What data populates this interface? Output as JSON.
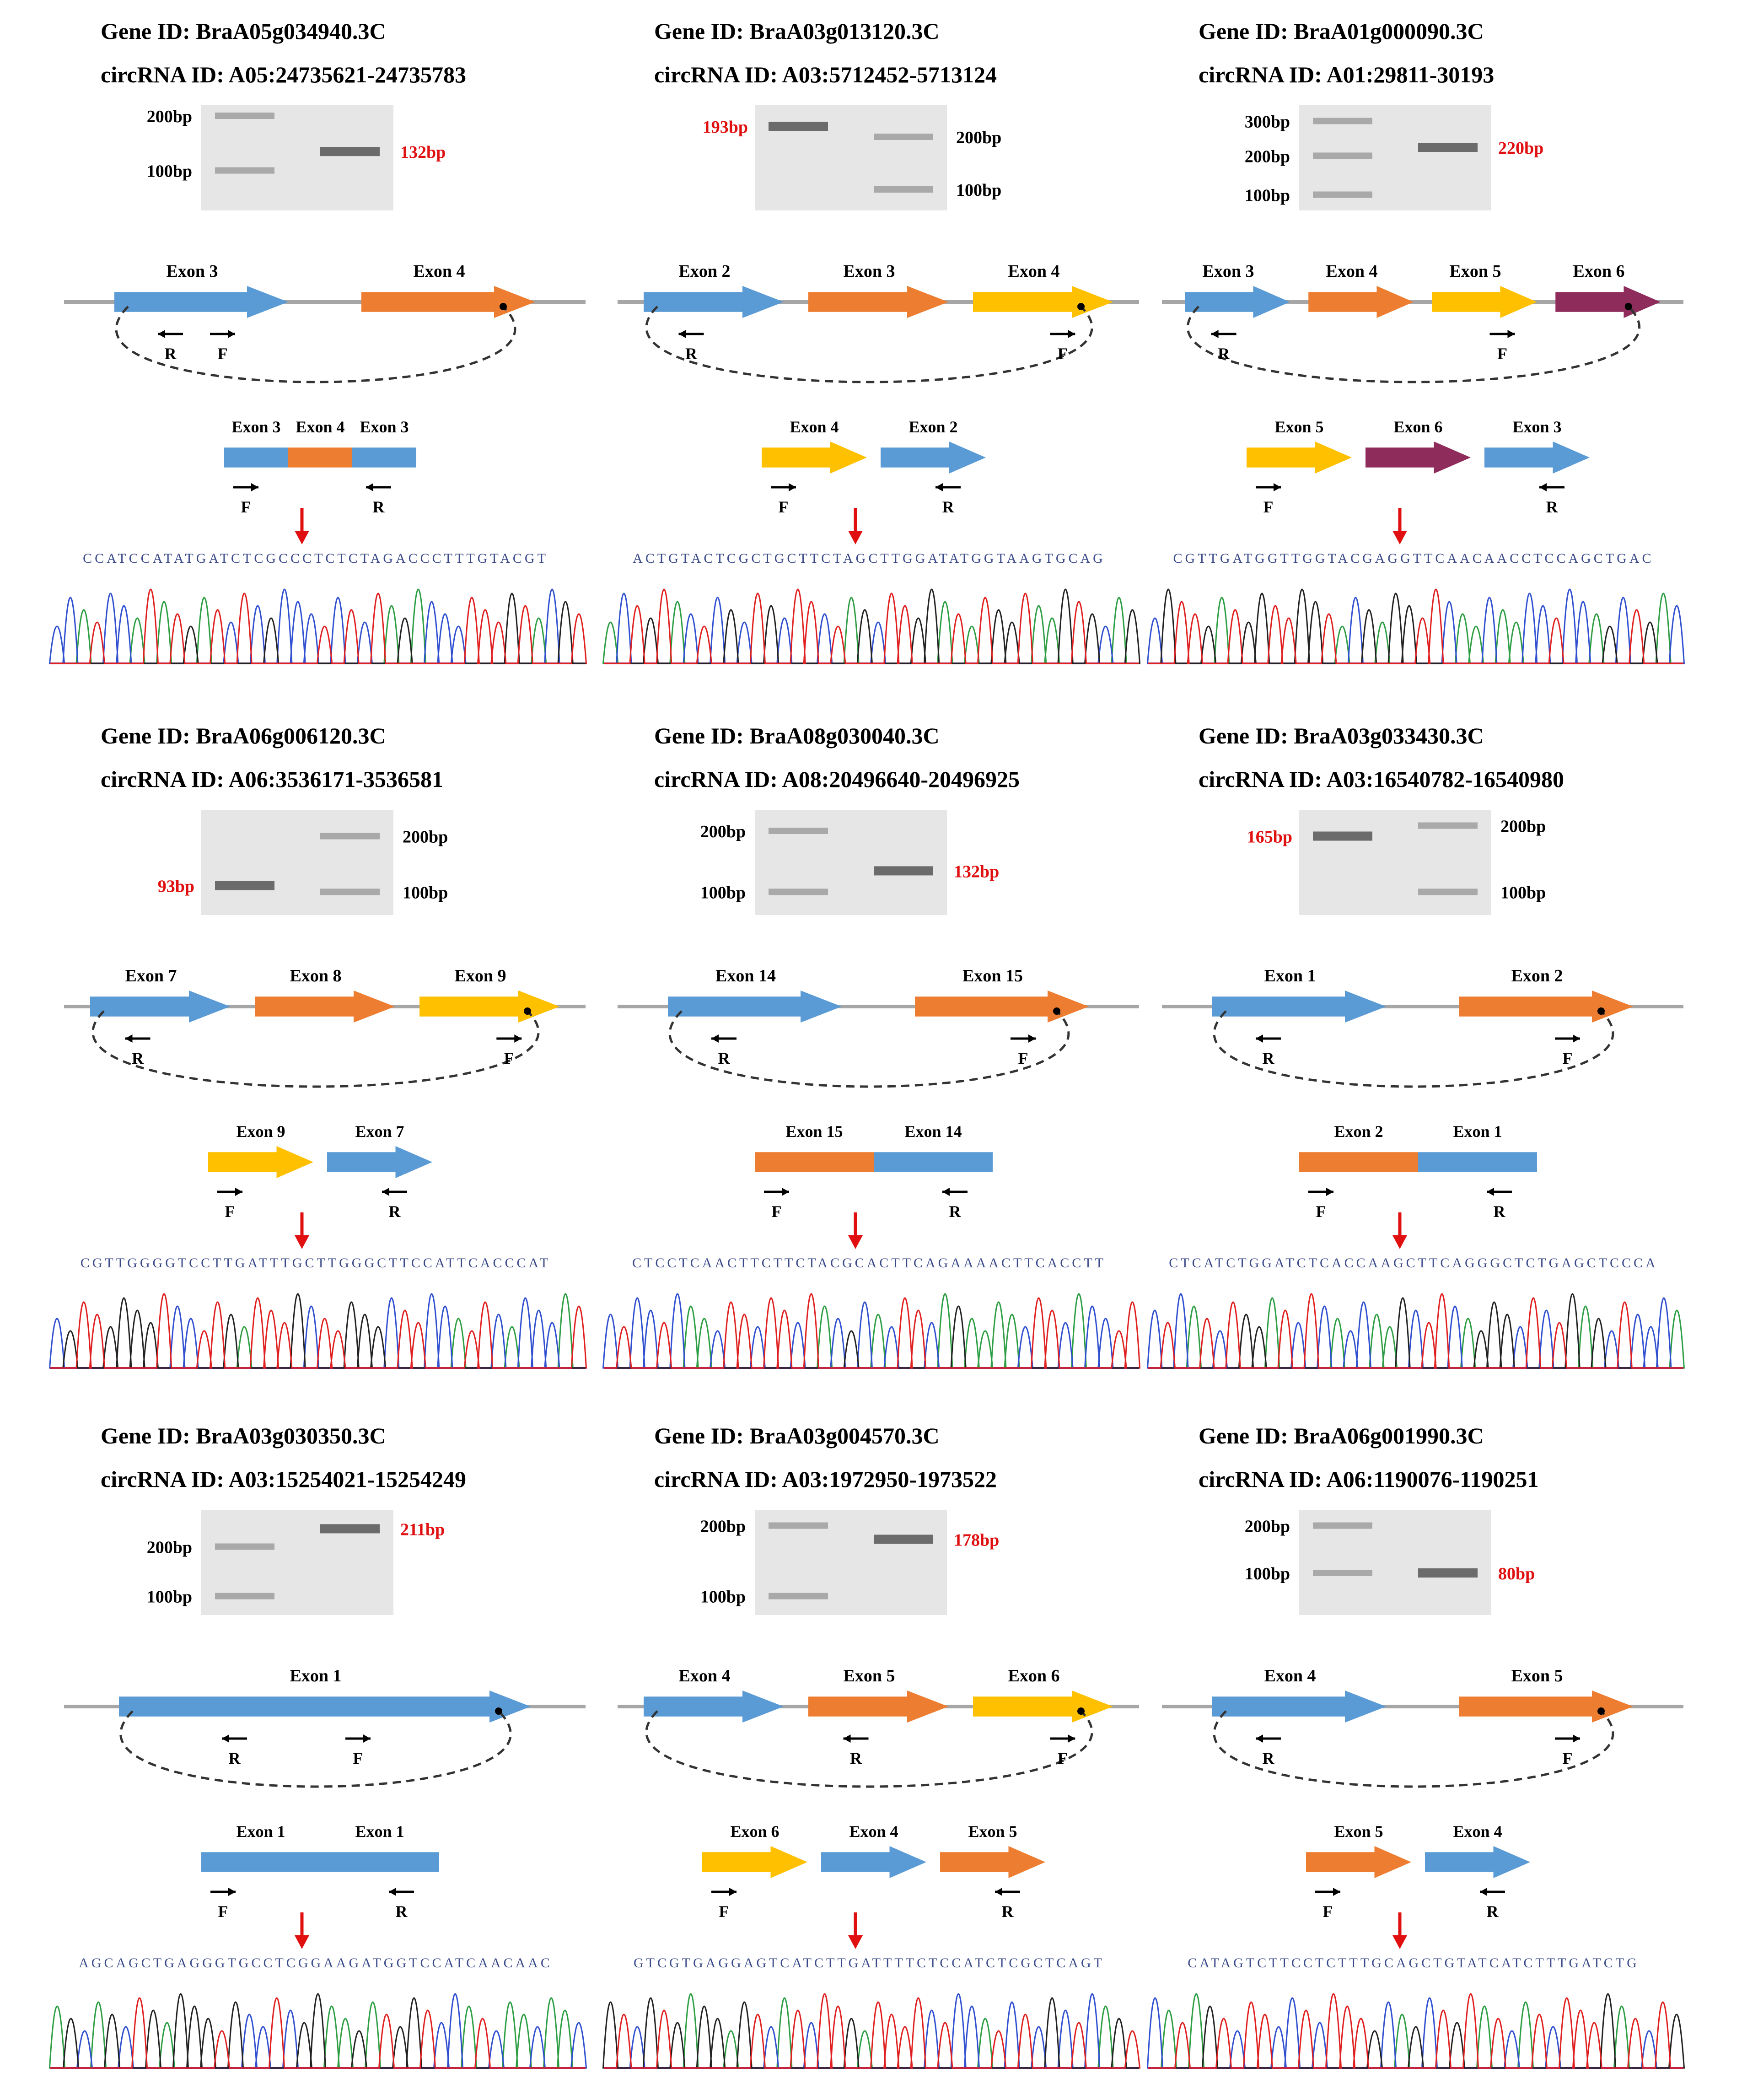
{
  "figure": {
    "colors": {
      "blue": "#5b9bd5",
      "orange": "#ed7d31",
      "yellow": "#ffc000",
      "purple": "#8e2c5c",
      "line": "#a6a6a6",
      "red": "#e01010",
      "gel": "#e6e6e6",
      "trace_a": "#2e9e44",
      "trace_c": "#3050d0",
      "trace_g": "#222222",
      "trace_t": "#e02020"
    },
    "panels": [
      {
        "gene_label": "Gene ID: BraA05g034940.3C",
        "circ_label": "circRNA ID: A05:24735621-24735783",
        "gel": {
          "markers": [
            {
              "text": "200bp",
              "pos": 0.1
            },
            {
              "text": "100bp",
              "pos": 0.62
            }
          ],
          "product": {
            "text": "132bp",
            "pos": 0.44
          },
          "marker_side": "left",
          "product_side": "right"
        },
        "exons": [
          {
            "label": "Exon 3",
            "color": "blue"
          },
          {
            "label": "Exon 4",
            "color": "orange"
          }
        ],
        "primers": [
          {
            "label": "R",
            "exon": 0,
            "dir": "left"
          },
          {
            "label": "F",
            "exon": 0,
            "dir": "right"
          }
        ],
        "junction": [
          {
            "label": "Exon 3",
            "color": "blue"
          },
          {
            "label": "Exon 4",
            "color": "orange"
          },
          {
            "label": "Exon 3",
            "color": "blue"
          }
        ],
        "junction_style": "bar",
        "sequence": "CCATCCATATGATCTCGCCCTCTCTAGACCCTTTGTACGT"
      },
      {
        "gene_label": "Gene ID: BraA03g013120.3C",
        "circ_label": "circRNA ID: A03:5712452-5713124",
        "gel": {
          "markers": [
            {
              "text": "200bp",
              "pos": 0.3
            },
            {
              "text": "100bp",
              "pos": 0.8
            }
          ],
          "product": {
            "text": "193bp",
            "pos": 0.2
          },
          "marker_side": "right",
          "product_side": "left"
        },
        "exons": [
          {
            "label": "Exon 2",
            "color": "blue"
          },
          {
            "label": "Exon 3",
            "color": "orange"
          },
          {
            "label": "Exon 4",
            "color": "yellow"
          }
        ],
        "primers": [
          {
            "label": "R",
            "exon": 0,
            "dir": "left"
          },
          {
            "label": "F",
            "exon": 2,
            "dir": "right"
          }
        ],
        "junction": [
          {
            "label": "Exon 4",
            "color": "yellow"
          },
          {
            "label": "Exon 2",
            "color": "blue"
          }
        ],
        "junction_style": "arrow",
        "sequence": "ACTGTACTCGCTGCTTCTAGCTTGGATATGGTAAGTGCAG"
      },
      {
        "gene_label": "Gene ID: BraA01g000090.3C",
        "circ_label": "circRNA ID: A01:29811-30193",
        "gel": {
          "markers": [
            {
              "text": "300bp",
              "pos": 0.15
            },
            {
              "text": "200bp",
              "pos": 0.48
            },
            {
              "text": "100bp",
              "pos": 0.85
            }
          ],
          "product": {
            "text": "220bp",
            "pos": 0.4
          },
          "marker_side": "left",
          "product_side": "right"
        },
        "exons": [
          {
            "label": "Exon 3",
            "color": "blue"
          },
          {
            "label": "Exon 4",
            "color": "orange"
          },
          {
            "label": "Exon 5",
            "color": "yellow"
          },
          {
            "label": "Exon 6",
            "color": "purple"
          }
        ],
        "primers": [
          {
            "label": "R",
            "exon": 0,
            "dir": "left"
          },
          {
            "label": "F",
            "exon": 2,
            "dir": "right"
          }
        ],
        "junction": [
          {
            "label": "Exon 5",
            "color": "yellow"
          },
          {
            "label": "Exon 6",
            "color": "purple"
          },
          {
            "label": "Exon 3",
            "color": "blue"
          }
        ],
        "junction_style": "arrow",
        "sequence": "CGTTGATGGTTGGTACGAGGTTCAACAACCTCCAGCTGAC"
      },
      {
        "gene_label": "Gene ID: BraA06g006120.3C",
        "circ_label": "circRNA ID: A06:3536171-3536581",
        "gel": {
          "markers": [
            {
              "text": "200bp",
              "pos": 0.25
            },
            {
              "text": "100bp",
              "pos": 0.78
            }
          ],
          "product": {
            "text": "93bp",
            "pos": 0.72
          },
          "marker_side": "right",
          "product_side": "left"
        },
        "exons": [
          {
            "label": "Exon 7",
            "color": "blue"
          },
          {
            "label": "Exon 8",
            "color": "orange"
          },
          {
            "label": "Exon 9",
            "color": "yellow"
          }
        ],
        "primers": [
          {
            "label": "R",
            "exon": 0,
            "dir": "left"
          },
          {
            "label": "F",
            "exon": 2,
            "dir": "right"
          }
        ],
        "junction": [
          {
            "label": "Exon 9",
            "color": "yellow"
          },
          {
            "label": "Exon 7",
            "color": "blue"
          }
        ],
        "junction_style": "arrow",
        "sequence": "CGTTGGGGTCCTTGATTTGCTTGGGCTTCCATTCACCCAT"
      },
      {
        "gene_label": "Gene ID: BraA08g030040.3C",
        "circ_label": "circRNA ID: A08:20496640-20496925",
        "gel": {
          "markers": [
            {
              "text": "200bp",
              "pos": 0.2
            },
            {
              "text": "100bp",
              "pos": 0.78
            }
          ],
          "product": {
            "text": "132bp",
            "pos": 0.58
          },
          "marker_side": "left",
          "product_side": "right"
        },
        "exons": [
          {
            "label": "Exon 14",
            "color": "blue"
          },
          {
            "label": "Exon 15",
            "color": "orange"
          }
        ],
        "primers": [
          {
            "label": "R",
            "exon": 0,
            "dir": "left"
          },
          {
            "label": "F",
            "exon": 1,
            "dir": "right"
          }
        ],
        "junction": [
          {
            "label": "Exon 15",
            "color": "orange"
          },
          {
            "label": "Exon 14",
            "color": "blue"
          }
        ],
        "junction_style": "bar",
        "sequence": "CTCCTCAACTTCTTCTACGCACTTCAGAAAACTTCACCTT"
      },
      {
        "gene_label": "Gene ID: BraA03g033430.3C",
        "circ_label": "circRNA ID: A03:16540782-16540980",
        "gel": {
          "markers": [
            {
              "text": "200bp",
              "pos": 0.15
            },
            {
              "text": "100bp",
              "pos": 0.78
            }
          ],
          "product": {
            "text": "165bp",
            "pos": 0.25
          },
          "marker_side": "right",
          "product_side": "left"
        },
        "exons": [
          {
            "label": "Exon 1",
            "color": "blue"
          },
          {
            "label": "Exon 2",
            "color": "orange"
          }
        ],
        "primers": [
          {
            "label": "R",
            "exon": 0,
            "dir": "left"
          },
          {
            "label": "F",
            "exon": 1,
            "dir": "right"
          }
        ],
        "junction": [
          {
            "label": "Exon 2",
            "color": "orange"
          },
          {
            "label": "Exon 1",
            "color": "blue"
          }
        ],
        "junction_style": "bar",
        "sequence": "CTCATCTGGATCTCACCAAGCTTCAGGGCTCTGAGCTCCCA"
      },
      {
        "gene_label": "Gene ID: BraA03g030350.3C",
        "circ_label": "circRNA ID: A03:15254021-15254249",
        "gel": {
          "markers": [
            {
              "text": "200bp",
              "pos": 0.35
            },
            {
              "text": "100bp",
              "pos": 0.82
            }
          ],
          "product": {
            "text": "211bp",
            "pos": 0.18
          },
          "marker_side": "left",
          "product_side": "right"
        },
        "exons": [
          {
            "label": "Exon 1",
            "color": "blue"
          }
        ],
        "primers": [
          {
            "label": "R",
            "exon": 0,
            "dir": "left"
          },
          {
            "label": "F",
            "exon": 0,
            "dir": "right"
          }
        ],
        "junction": [
          {
            "label": "Exon 1",
            "color": "blue"
          },
          {
            "label": "Exon 1",
            "color": "blue"
          }
        ],
        "junction_style": "bar",
        "sequence": "AGCAGCTGAGGGTGCCTCGGAAGATGGTCCATCAACAAC"
      },
      {
        "gene_label": "Gene ID: BraA03g004570.3C",
        "circ_label": "circRNA ID: A03:1972950-1973522",
        "gel": {
          "markers": [
            {
              "text": "200bp",
              "pos": 0.15
            },
            {
              "text": "100bp",
              "pos": 0.82
            }
          ],
          "product": {
            "text": "178bp",
            "pos": 0.28
          },
          "marker_side": "left",
          "product_side": "right"
        },
        "exons": [
          {
            "label": "Exon 4",
            "color": "blue"
          },
          {
            "label": "Exon 5",
            "color": "orange"
          },
          {
            "label": "Exon 6",
            "color": "yellow"
          }
        ],
        "primers": [
          {
            "label": "R",
            "exon": 1,
            "dir": "left"
          },
          {
            "label": "F",
            "exon": 2,
            "dir": "right"
          }
        ],
        "junction": [
          {
            "label": "Exon 6",
            "color": "yellow"
          },
          {
            "label": "Exon 4",
            "color": "blue"
          },
          {
            "label": "Exon 5",
            "color": "orange"
          }
        ],
        "junction_style": "arrow",
        "sequence": "GTCGTGAGGAGTCATCTTGATTTTCTCCATCTCGCTCAGT"
      },
      {
        "gene_label": "Gene ID: BraA06g001990.3C",
        "circ_label": "circRNA ID: A06:1190076-1190251",
        "gel": {
          "markers": [
            {
              "text": "200bp",
              "pos": 0.15
            },
            {
              "text": "100bp",
              "pos": 0.6
            }
          ],
          "product": {
            "text": "80bp",
            "pos": 0.6
          },
          "marker_side": "left",
          "product_side": "right"
        },
        "exons": [
          {
            "label": "Exon 4",
            "color": "blue"
          },
          {
            "label": "Exon 5",
            "color": "orange"
          }
        ],
        "primers": [
          {
            "label": "R",
            "exon": 0,
            "dir": "left"
          },
          {
            "label": "F",
            "exon": 1,
            "dir": "right"
          }
        ],
        "junction": [
          {
            "label": "Exon 5",
            "color": "orange"
          },
          {
            "label": "Exon 4",
            "color": "blue"
          }
        ],
        "junction_style": "arrow",
        "sequence": "CATAGTCTTCCTCTTTGCAGCTGTATCATCTTTGATCTG"
      }
    ]
  }
}
